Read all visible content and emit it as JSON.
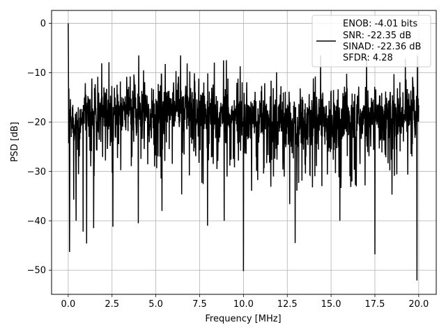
{
  "chart_data": {
    "type": "line",
    "title": "",
    "xlabel": "Frequency [MHz]",
    "ylabel": "PSD [dB]",
    "xlim": [
      -0.95,
      21.0
    ],
    "ylim": [
      -54.9,
      2.6
    ],
    "xticks": [
      0.0,
      2.5,
      5.0,
      7.5,
      10.0,
      12.5,
      15.0,
      17.5,
      20.0
    ],
    "xtick_labels": [
      "0.0",
      "2.5",
      "5.0",
      "7.5",
      "10.0",
      "12.5",
      "15.0",
      "17.5",
      "20.0"
    ],
    "yticks": [
      0,
      -10,
      -20,
      -30,
      -40,
      -50
    ],
    "ytick_labels": [
      "0",
      "−10",
      "−20",
      "−30",
      "−40",
      "−50"
    ],
    "grid": true,
    "legend_position": "top-right",
    "legend_lines": [
      "ENOB: -4.01 bits",
      "SNR: -22.35 dB",
      "SINAD: -22.36 dB",
      "SFDR: 4.28"
    ],
    "line_color": "#000000",
    "series": [
      {
        "x_range": [
          0.0,
          20.0
        ],
        "peak": {
          "x": 0.0,
          "y": 0.0
        },
        "noise_floor_mean": -18.5,
        "notable_minima": [
          {
            "x": 0.07,
            "y": -46.3
          },
          {
            "x": 0.45,
            "y": -40.0
          },
          {
            "x": 0.85,
            "y": -42.2
          },
          {
            "x": 1.05,
            "y": -44.6
          },
          {
            "x": 1.45,
            "y": -41.5
          },
          {
            "x": 2.55,
            "y": -41.2
          },
          {
            "x": 4.0,
            "y": -40.5
          },
          {
            "x": 5.35,
            "y": -38.0
          },
          {
            "x": 7.95,
            "y": -41.0
          },
          {
            "x": 8.9,
            "y": -40.0
          },
          {
            "x": 10.0,
            "y": -50.2
          },
          {
            "x": 12.95,
            "y": -44.5
          },
          {
            "x": 15.5,
            "y": -40.0
          },
          {
            "x": 17.5,
            "y": -46.8
          },
          {
            "x": 19.9,
            "y": -52.1
          }
        ]
      }
    ]
  }
}
